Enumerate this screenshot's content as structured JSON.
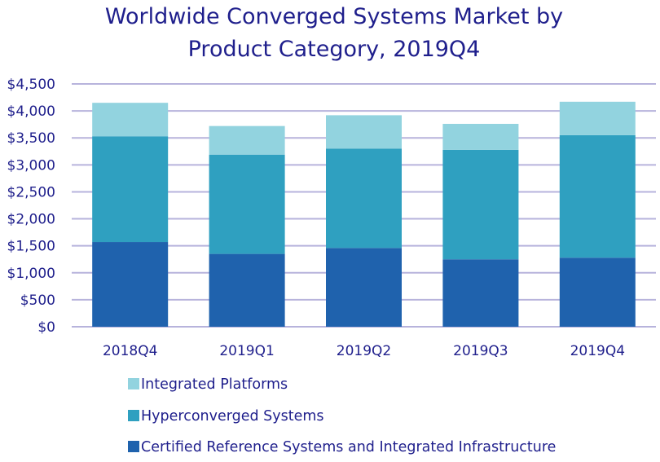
{
  "chart_data": {
    "type": "bar",
    "stacked": true,
    "title": "Worldwide Converged Systems Market by Product Category, 2019Q4",
    "title_lines": [
      "Worldwide Converged Systems Market by",
      "Product Category, 2019Q4"
    ],
    "xlabel": "",
    "ylabel": "",
    "categories": [
      "2018Q4",
      "2019Q1",
      "2019Q2",
      "2019Q3",
      "2019Q4"
    ],
    "ylim": [
      0,
      4500
    ],
    "yticks": [
      0,
      500,
      1000,
      1500,
      2000,
      2500,
      3000,
      3500,
      4000,
      4500
    ],
    "ytick_labels": [
      "$0",
      "$500",
      "$1,000",
      "$1,500",
      "$2,000",
      "$2,500",
      "$3,000",
      "$3,500",
      "$4,000",
      "$4,500"
    ],
    "grid": true,
    "legend_position": "bottom",
    "series": [
      {
        "name": "Certified Reference Systems and Integrated Infrastructure",
        "color": "#1f62ad",
        "values": [
          1570,
          1350,
          1460,
          1250,
          1280
        ]
      },
      {
        "name": "Hyperconverged Systems",
        "color": "#2fa0c0",
        "values": [
          1960,
          1840,
          1840,
          2030,
          2270
        ]
      },
      {
        "name": "Integrated Platforms",
        "color": "#92d3df",
        "values": [
          620,
          530,
          620,
          480,
          620
        ]
      }
    ],
    "legend_order": [
      2,
      1,
      0
    ]
  }
}
